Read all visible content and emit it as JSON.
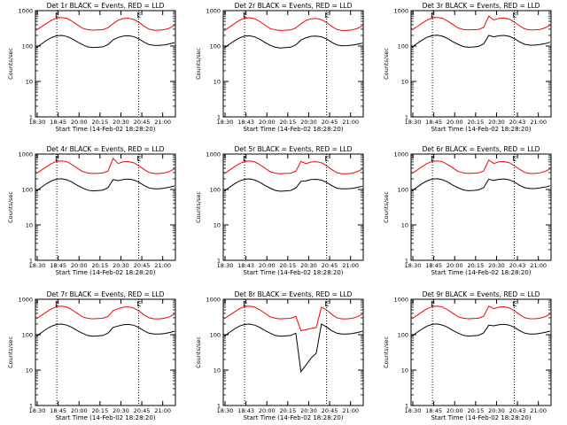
{
  "chart_data": [
    {
      "type": "line",
      "title": "Det 1r BLACK = Events, RED = LLD",
      "xlabel": "Start Time (14-Feb-02 18:28:20)",
      "ylabel": "Counts/sec",
      "marker": "E",
      "scale": "log",
      "ylim": [
        1,
        1000
      ],
      "x_ticks": [
        "18:30",
        "18:45",
        "20:00",
        "20:15",
        "20:30",
        "20:45",
        "21:00"
      ],
      "y_ticks": [
        "1",
        "10",
        "100",
        "1000"
      ],
      "series": [
        {
          "name": "Events",
          "color": "#000000",
          "values": [
            90,
            115,
            145,
            175,
            195,
            200,
            185,
            160,
            130,
            110,
            95,
            90,
            92,
            95,
            110,
            150,
            175,
            190,
            195,
            185,
            160,
            130,
            110,
            105,
            105,
            108,
            115,
            125
          ]
        },
        {
          "name": "LLD",
          "color": "#ff0000",
          "values": [
            280,
            350,
            440,
            540,
            620,
            640,
            600,
            500,
            400,
            320,
            290,
            280,
            285,
            290,
            330,
            430,
            540,
            600,
            610,
            570,
            470,
            370,
            300,
            280,
            280,
            290,
            320,
            380
          ]
        }
      ],
      "markers": [
        4,
        20
      ]
    },
    {
      "type": "line",
      "title": "Det 2r BLACK = Events, RED = LLD",
      "xlabel": "Start Time (14-Feb-02 18:28:20)",
      "ylabel": "Counts/sec",
      "marker": "E",
      "scale": "log",
      "ylim": [
        1,
        1000
      ],
      "x_ticks": [
        "18:30",
        "18:43",
        "20:00",
        "20:15",
        "20:30",
        "20:45",
        "21:00"
      ],
      "y_ticks": [
        "1",
        "10",
        "100",
        "1000"
      ],
      "series": [
        {
          "name": "Events",
          "color": "#000000",
          "values": [
            88,
            112,
            140,
            170,
            190,
            195,
            180,
            155,
            125,
            105,
            92,
            88,
            90,
            93,
            108,
            148,
            172,
            188,
            192,
            182,
            158,
            128,
            108,
            102,
            103,
            106,
            112,
            120
          ]
        },
        {
          "name": "LLD",
          "color": "#ff0000",
          "values": [
            270,
            340,
            430,
            530,
            610,
            630,
            590,
            490,
            390,
            310,
            285,
            275,
            280,
            285,
            325,
            425,
            530,
            590,
            600,
            560,
            460,
            360,
            295,
            275,
            275,
            285,
            315,
            370
          ]
        }
      ],
      "markers": [
        4,
        20
      ]
    },
    {
      "type": "line",
      "title": "Det 3r BLACK = Events, RED = LLD",
      "xlabel": "Start Time (14-Feb-02 18:28:20)",
      "ylabel": "Counts/sec",
      "marker": "E",
      "scale": "log",
      "ylim": [
        1,
        1000
      ],
      "x_ticks": [
        "18:30",
        "18:45",
        "20:00",
        "20:15",
        "20:30",
        "20:43",
        "21:00"
      ],
      "y_ticks": [
        "1",
        "10",
        "100",
        "1000"
      ],
      "series": [
        {
          "name": "Events",
          "color": "#000000",
          "values": [
            92,
            118,
            148,
            178,
            198,
            202,
            188,
            162,
            132,
            112,
            97,
            92,
            94,
            98,
            115,
            200,
            182,
            195,
            200,
            188,
            162,
            132,
            112,
            106,
            106,
            110,
            117,
            128
          ]
        },
        {
          "name": "LLD",
          "color": "#ff0000",
          "values": [
            285,
            355,
            445,
            545,
            625,
            645,
            605,
            505,
            405,
            325,
            295,
            285,
            290,
            295,
            335,
            700,
            545,
            605,
            615,
            575,
            475,
            375,
            305,
            285,
            285,
            295,
            325,
            385
          ]
        }
      ],
      "markers": [
        4,
        20
      ]
    },
    {
      "type": "line",
      "title": "Det 4r BLACK = Events, RED = LLD",
      "xlabel": "Start Time (14-Feb-02 18:28:20)",
      "ylabel": "Counts/sec",
      "marker": "E",
      "scale": "log",
      "ylim": [
        1,
        1000
      ],
      "x_ticks": [
        "18:30",
        "18:45",
        "20:00",
        "20:15",
        "20:30",
        "20:45",
        "21:00"
      ],
      "y_ticks": [
        "1",
        "10",
        "100",
        "1000"
      ],
      "series": [
        {
          "name": "Events",
          "color": "#000000",
          "values": [
            90,
            116,
            146,
            176,
            196,
            201,
            186,
            161,
            131,
            111,
            96,
            91,
            93,
            96,
            112,
            190,
            178,
            192,
            196,
            186,
            161,
            131,
            111,
            105,
            105,
            109,
            116,
            126
          ]
        },
        {
          "name": "LLD",
          "color": "#ff0000",
          "values": [
            282,
            352,
            442,
            542,
            622,
            642,
            602,
            502,
            402,
            322,
            292,
            282,
            287,
            292,
            332,
            750,
            542,
            602,
            612,
            572,
            472,
            372,
            302,
            282,
            282,
            292,
            322,
            382
          ]
        }
      ],
      "markers": [
        4,
        20
      ]
    },
    {
      "type": "line",
      "title": "Det 5r BLACK = Events, RED = LLD",
      "xlabel": "Start Time (14-Feb-02 18:28:20)",
      "ylabel": "Counts/sec",
      "marker": "E",
      "scale": "log",
      "ylim": [
        1,
        1000
      ],
      "x_ticks": [
        "18:30",
        "18:43",
        "20:00",
        "20:15",
        "20:30",
        "20:45",
        "21:00"
      ],
      "y_ticks": [
        "1",
        "10",
        "100",
        "1000"
      ],
      "series": [
        {
          "name": "Events",
          "color": "#000000",
          "values": [
            89,
            114,
            144,
            174,
            194,
            199,
            184,
            159,
            129,
            109,
            94,
            89,
            91,
            94,
            110,
            170,
            176,
            190,
            194,
            184,
            159,
            129,
            109,
            104,
            104,
            107,
            114,
            124
          ]
        },
        {
          "name": "LLD",
          "color": "#ff0000",
          "values": [
            278,
            348,
            438,
            538,
            618,
            638,
            598,
            498,
            398,
            318,
            288,
            278,
            283,
            288,
            328,
            620,
            538,
            598,
            608,
            568,
            468,
            368,
            298,
            278,
            278,
            288,
            318,
            378
          ]
        }
      ],
      "markers": [
        4,
        20
      ]
    },
    {
      "type": "line",
      "title": "Det 6r BLACK = Events, RED = LLD",
      "xlabel": "Start Time (14-Feb-02 18:28:20)",
      "ylabel": "Counts/sec",
      "marker": "E",
      "scale": "log",
      "ylim": [
        1,
        1000
      ],
      "x_ticks": [
        "18:30",
        "18:45",
        "20:00",
        "20:15",
        "20:30",
        "20:43",
        "21:00"
      ],
      "y_ticks": [
        "1",
        "10",
        "100",
        "1000"
      ],
      "series": [
        {
          "name": "Events",
          "color": "#000000",
          "values": [
            91,
            117,
            147,
            177,
            197,
            202,
            187,
            162,
            132,
            112,
            97,
            92,
            94,
            97,
            113,
            195,
            180,
            194,
            198,
            187,
            162,
            132,
            112,
            106,
            106,
            110,
            117,
            127
          ]
        },
        {
          "name": "LLD",
          "color": "#ff0000",
          "values": [
            283,
            353,
            443,
            543,
            623,
            643,
            603,
            503,
            403,
            323,
            293,
            283,
            288,
            293,
            333,
            680,
            543,
            603,
            613,
            573,
            473,
            373,
            303,
            283,
            283,
            293,
            323,
            383
          ]
        }
      ],
      "markers": [
        4,
        20
      ]
    },
    {
      "type": "line",
      "title": "Det 7r BLACK = Events, RED = LLD",
      "xlabel": "Start Time (14-Feb-02 18:28:20)",
      "ylabel": "Counts/sec",
      "marker": "E",
      "scale": "log",
      "ylim": [
        1,
        1000
      ],
      "x_ticks": [
        "18:30",
        "18:45",
        "20:00",
        "20:15",
        "20:30",
        "20:45",
        "21:00"
      ],
      "y_ticks": [
        "1",
        "10",
        "100",
        "1000"
      ],
      "series": [
        {
          "name": "Events",
          "color": "#000000",
          "values": [
            90,
            115,
            145,
            175,
            195,
            200,
            185,
            160,
            130,
            110,
            95,
            90,
            92,
            95,
            111,
            160,
            176,
            190,
            195,
            185,
            160,
            130,
            110,
            105,
            105,
            108,
            115,
            125
          ]
        },
        {
          "name": "LLD",
          "color": "#ff0000",
          "values": [
            280,
            350,
            440,
            540,
            620,
            640,
            600,
            500,
            400,
            320,
            290,
            280,
            285,
            290,
            330,
            480,
            540,
            600,
            610,
            570,
            470,
            370,
            300,
            280,
            280,
            290,
            320,
            380
          ]
        }
      ],
      "markers": [
        4,
        20
      ]
    },
    {
      "type": "line",
      "title": "Det 8r BLACK = Events, RED = LLD",
      "xlabel": "Start Time (14-Feb-02 18:28:20)",
      "ylabel": "Counts/sec",
      "marker": "E",
      "scale": "log",
      "ylim": [
        1,
        1000
      ],
      "x_ticks": [
        "18:30",
        "18:43",
        "20:00",
        "20:15",
        "20:30",
        "20:45",
        "21:00"
      ],
      "y_ticks": [
        "1",
        "10",
        "100",
        "1000"
      ],
      "series": [
        {
          "name": "Events",
          "color": "#000000",
          "values": [
            90,
            115,
            145,
            175,
            195,
            200,
            185,
            160,
            130,
            110,
            95,
            90,
            92,
            95,
            110,
            9,
            14,
            22,
            30,
            200,
            165,
            130,
            110,
            105,
            105,
            108,
            115,
            125
          ]
        },
        {
          "name": "LLD",
          "color": "#ff0000",
          "values": [
            280,
            350,
            440,
            540,
            620,
            640,
            600,
            500,
            400,
            320,
            290,
            280,
            285,
            290,
            330,
            130,
            140,
            150,
            160,
            600,
            500,
            380,
            300,
            280,
            280,
            290,
            320,
            380
          ]
        }
      ],
      "markers": [
        4,
        20
      ]
    },
    {
      "type": "line",
      "title": "Det 9r BLACK = Events, RED = LLD",
      "xlabel": "Start Time (14-Feb-02 18:28:20)",
      "ylabel": "Counts/sec",
      "marker": "E",
      "scale": "log",
      "ylim": [
        1,
        1000
      ],
      "x_ticks": [
        "18:30",
        "18:45",
        "20:00",
        "20:15",
        "20:30",
        "20:43",
        "21:00"
      ],
      "y_ticks": [
        "1",
        "10",
        "100",
        "1000"
      ],
      "series": [
        {
          "name": "Events",
          "color": "#000000",
          "values": [
            91,
            116,
            146,
            176,
            196,
            201,
            186,
            161,
            131,
            111,
            96,
            91,
            93,
            96,
            112,
            185,
            178,
            192,
            196,
            186,
            161,
            131,
            111,
            105,
            105,
            109,
            116,
            126
          ]
        },
        {
          "name": "LLD",
          "color": "#ff0000",
          "values": [
            282,
            352,
            442,
            542,
            622,
            642,
            602,
            502,
            402,
            322,
            292,
            282,
            287,
            292,
            332,
            640,
            542,
            602,
            612,
            572,
            472,
            372,
            302,
            282,
            282,
            292,
            322,
            382
          ]
        }
      ],
      "markers": [
        4,
        20
      ]
    }
  ]
}
